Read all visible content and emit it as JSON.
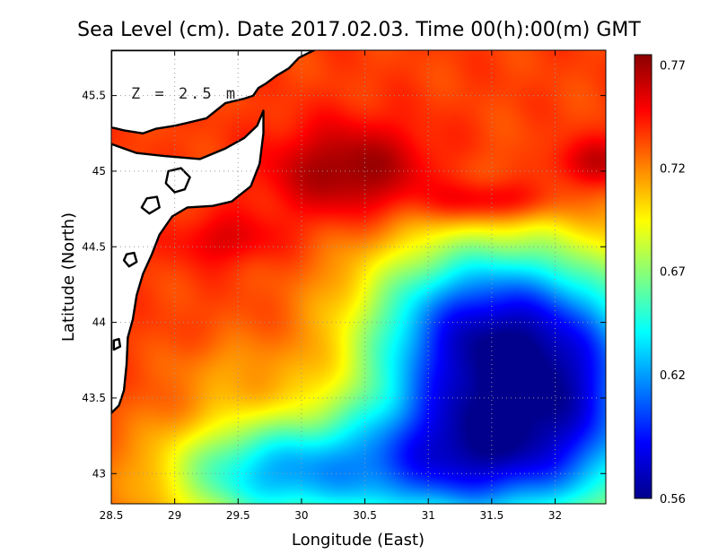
{
  "title": "Sea Level (cm). Date 2017.02.03. Time 00(h):00(m) GMT",
  "depth_label": "Z = 2.5 m",
  "x_axis": {
    "label": "Longitude (East)",
    "range": [
      28.5,
      32.4
    ],
    "ticks": [
      {
        "value": 28.5,
        "label": "28.5"
      },
      {
        "value": 29,
        "label": "29"
      },
      {
        "value": 29.5,
        "label": "29.5"
      },
      {
        "value": 30,
        "label": "30"
      },
      {
        "value": 30.5,
        "label": "30.5"
      },
      {
        "value": 31,
        "label": "31"
      },
      {
        "value": 31.5,
        "label": "31.5"
      },
      {
        "value": 32,
        "label": "32"
      }
    ]
  },
  "y_axis": {
    "label": "Latitude (North)",
    "range": [
      42.8,
      45.8
    ],
    "ticks": [
      {
        "value": 43,
        "label": "43"
      },
      {
        "value": 43.5,
        "label": "43.5"
      },
      {
        "value": 44,
        "label": "44"
      },
      {
        "value": 44.5,
        "label": "44.5"
      },
      {
        "value": 45,
        "label": "45"
      },
      {
        "value": 45.5,
        "label": "45.5"
      }
    ]
  },
  "colorbar": {
    "min": 0.56,
    "max": 0.775,
    "labels": [
      {
        "value": 0.77,
        "label": "0.77"
      },
      {
        "value": 0.72,
        "label": "0.72"
      },
      {
        "value": 0.67,
        "label": "0.67"
      },
      {
        "value": 0.62,
        "label": "0.62"
      },
      {
        "value": 0.56,
        "label": "0.56"
      }
    ],
    "colors": [
      "#00008c",
      "#0000ff",
      "#0080ff",
      "#00ffff",
      "#80ff80",
      "#ffff00",
      "#ff8000",
      "#ff0000",
      "#8b0000"
    ]
  },
  "field": {
    "background_value": 0.735,
    "features": [
      {
        "lon": 30.4,
        "lat": 45.0,
        "sigma_lon": 0.45,
        "sigma_lat": 0.22,
        "delta": 0.04
      },
      {
        "lon": 31.5,
        "lat": 44.8,
        "sigma_lon": 0.35,
        "sigma_lat": 0.1,
        "delta": 0.035
      },
      {
        "lon": 32.3,
        "lat": 45.05,
        "sigma_lon": 0.25,
        "sigma_lat": 0.12,
        "delta": 0.03
      },
      {
        "lon": 29.4,
        "lat": 44.55,
        "sigma_lon": 0.3,
        "sigma_lat": 0.12,
        "delta": 0.02
      },
      {
        "lon": 31.4,
        "lat": 43.9,
        "sigma_lon": 0.65,
        "sigma_lat": 0.45,
        "delta": -0.15
      },
      {
        "lon": 31.4,
        "lat": 43.1,
        "sigma_lon": 0.6,
        "sigma_lat": 0.35,
        "delta": -0.1
      },
      {
        "lon": 30.2,
        "lat": 43.0,
        "sigma_lon": 0.8,
        "sigma_lat": 0.3,
        "delta": -0.08
      },
      {
        "lon": 29.6,
        "lat": 43.0,
        "sigma_lon": 0.5,
        "sigma_lat": 0.25,
        "delta": -0.04
      },
      {
        "lon": 32.3,
        "lat": 43.5,
        "sigma_lon": 0.5,
        "sigma_lat": 0.6,
        "delta": -0.09
      },
      {
        "lon": 29.4,
        "lat": 43.7,
        "sigma_lon": 0.3,
        "sigma_lat": 0.15,
        "delta": -0.015
      }
    ]
  },
  "coastline": [
    {
      "name": "land-north",
      "points": [
        [
          28.5,
          45.6
        ],
        [
          28.5,
          45.29
        ],
        [
          28.6,
          45.27
        ],
        [
          28.75,
          45.25
        ],
        [
          28.85,
          45.28
        ],
        [
          29.0,
          45.3
        ],
        [
          29.1,
          45.32
        ],
        [
          29.25,
          45.35
        ],
        [
          29.4,
          45.45
        ],
        [
          29.55,
          45.48
        ],
        [
          29.62,
          45.5
        ],
        [
          29.66,
          45.55
        ],
        [
          29.72,
          45.58
        ],
        [
          29.8,
          45.63
        ],
        [
          29.9,
          45.68
        ],
        [
          29.98,
          45.75
        ],
        [
          30.05,
          45.78
        ],
        [
          30.1,
          45.8
        ],
        [
          28.5,
          45.8
        ]
      ]
    },
    {
      "name": "land-west",
      "points": [
        [
          28.5,
          45.18
        ],
        [
          28.7,
          45.12
        ],
        [
          28.92,
          45.1
        ],
        [
          29.2,
          45.08
        ],
        [
          29.4,
          45.15
        ],
        [
          29.55,
          45.22
        ],
        [
          29.65,
          45.3
        ],
        [
          29.7,
          45.4
        ],
        [
          29.7,
          45.25
        ],
        [
          29.67,
          45.05
        ],
        [
          29.6,
          44.9
        ],
        [
          29.45,
          44.8
        ],
        [
          29.3,
          44.77
        ],
        [
          29.1,
          44.76
        ],
        [
          28.98,
          44.7
        ],
        [
          28.88,
          44.58
        ],
        [
          28.82,
          44.45
        ],
        [
          28.75,
          44.32
        ],
        [
          28.7,
          44.18
        ],
        [
          28.67,
          44.02
        ],
        [
          28.63,
          43.9
        ],
        [
          28.62,
          43.72
        ],
        [
          28.6,
          43.55
        ],
        [
          28.56,
          43.45
        ],
        [
          28.5,
          43.4
        ]
      ]
    }
  ],
  "lakes": [
    {
      "name": "lake-1",
      "points": [
        [
          28.95,
          45.0
        ],
        [
          29.05,
          45.02
        ],
        [
          29.12,
          44.96
        ],
        [
          29.08,
          44.88
        ],
        [
          29.0,
          44.86
        ],
        [
          28.93,
          44.92
        ]
      ]
    },
    {
      "name": "lake-2",
      "points": [
        [
          28.78,
          44.82
        ],
        [
          28.86,
          44.83
        ],
        [
          28.88,
          44.76
        ],
        [
          28.8,
          44.72
        ],
        [
          28.74,
          44.76
        ]
      ]
    },
    {
      "name": "lake-3",
      "points": [
        [
          28.62,
          44.45
        ],
        [
          28.68,
          44.46
        ],
        [
          28.7,
          44.4
        ],
        [
          28.64,
          44.37
        ],
        [
          28.6,
          44.41
        ]
      ]
    },
    {
      "name": "lake-4",
      "points": [
        [
          28.52,
          43.88
        ],
        [
          28.56,
          43.89
        ],
        [
          28.57,
          43.84
        ],
        [
          28.52,
          43.82
        ]
      ]
    }
  ]
}
